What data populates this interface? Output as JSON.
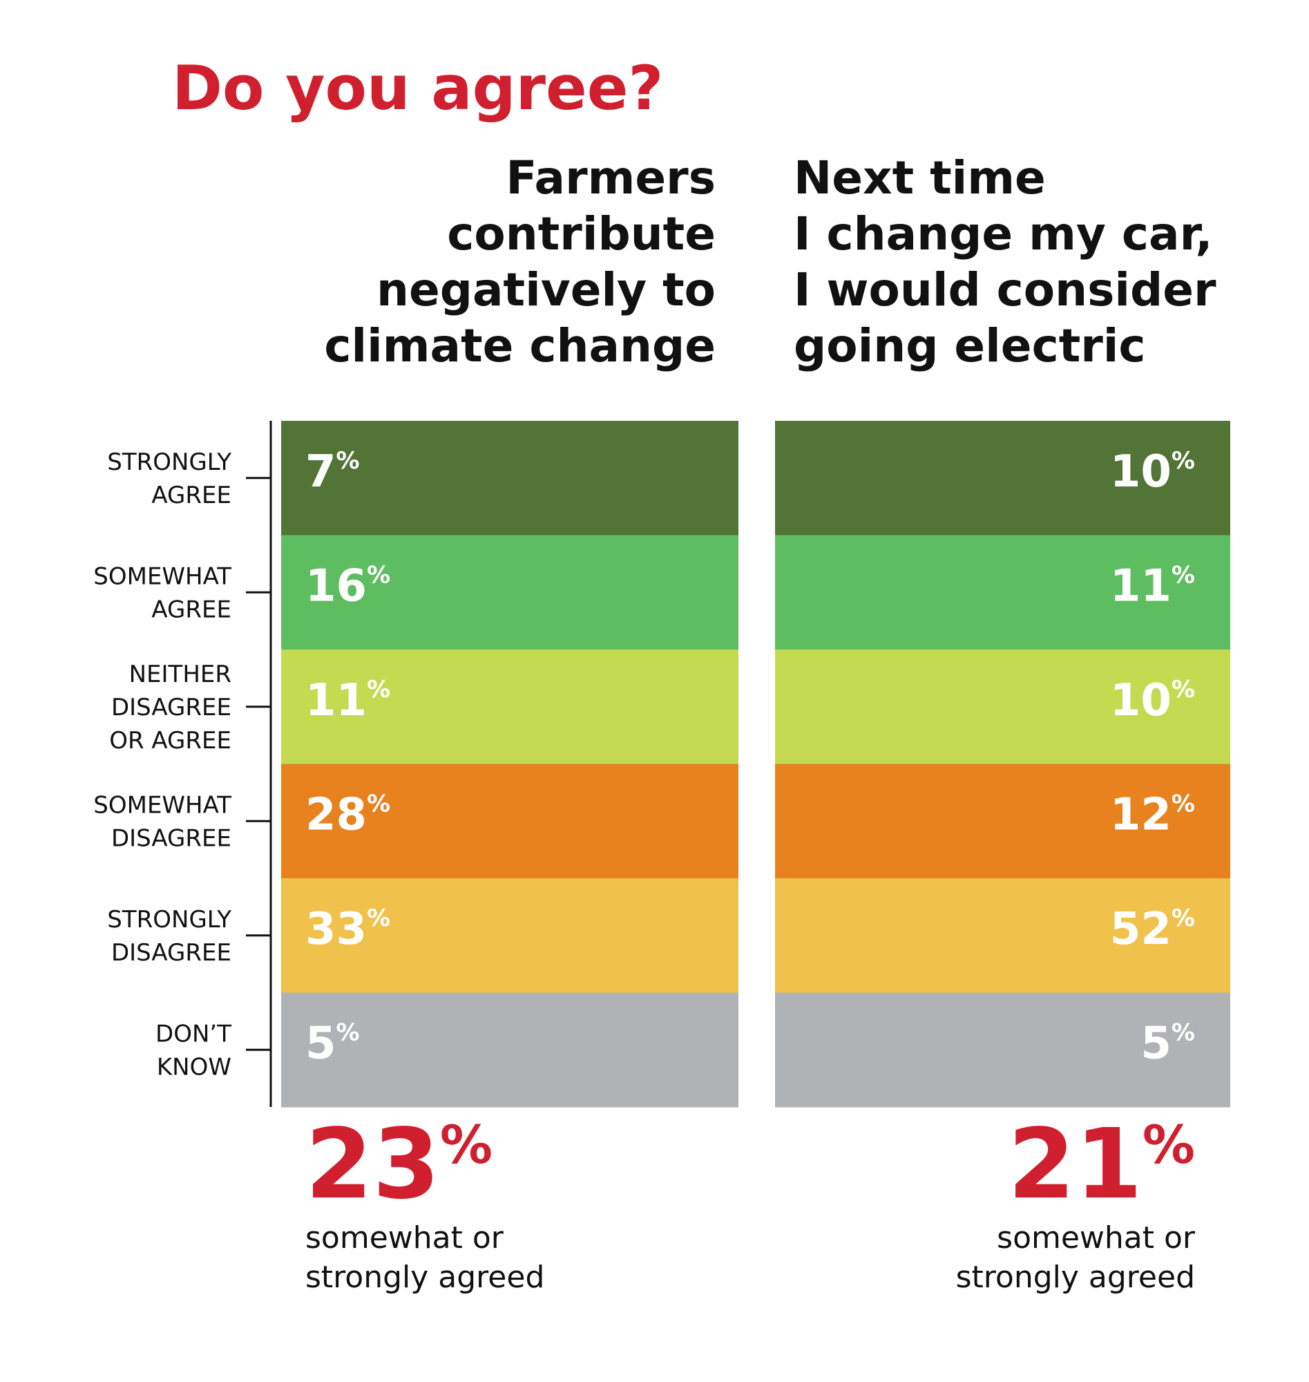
{
  "chart_data": {
    "type": "stacked-bar",
    "title": "Do you agree?",
    "unit": "%",
    "categories": [
      [
        "STRONGLY",
        "AGREE"
      ],
      [
        "SOMEWHAT",
        "AGREE"
      ],
      [
        "NEITHER",
        "DISAGREE",
        "OR AGREE"
      ],
      [
        "SOMEWHAT",
        "DISAGREE"
      ],
      [
        "STRONGLY",
        "DISAGREE"
      ],
      [
        "DON’T",
        "KNOW"
      ]
    ],
    "colors": [
      "#527436",
      "#5fbd61",
      "#c4db51",
      "#e8821f",
      "#f0c14b",
      "#b1b2b5"
    ],
    "series": [
      {
        "name_lines": [
          "Farmers",
          "contribute",
          "negatively to",
          "climate change"
        ],
        "values": [
          7,
          16,
          11,
          28,
          33,
          5
        ],
        "summary": 23,
        "summary_label": [
          "somewhat or",
          "strongly agreed"
        ]
      },
      {
        "name_lines": [
          "Next time",
          "I change my car,",
          "I would consider",
          "going electric"
        ],
        "values": [
          10,
          11,
          10,
          12,
          52,
          5
        ],
        "summary": 21,
        "summary_label": [
          "somewhat or",
          "strongly agreed"
        ]
      }
    ]
  }
}
